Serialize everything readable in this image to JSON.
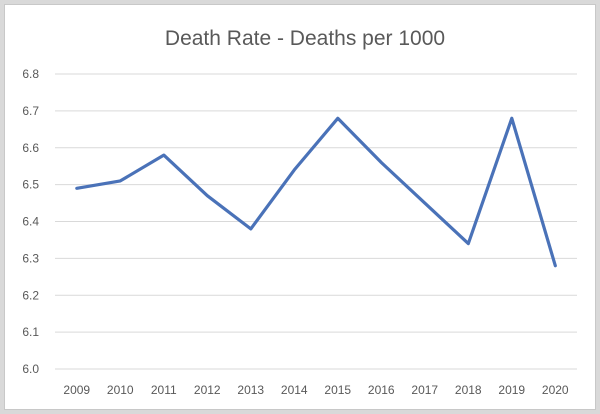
{
  "chart_data": {
    "type": "line",
    "title": "Death Rate - Deaths per 1000",
    "xlabel": "",
    "ylabel": "",
    "categories": [
      "2009",
      "2010",
      "2011",
      "2012",
      "2013",
      "2014",
      "2015",
      "2016",
      "2017",
      "2018",
      "2019",
      "2020"
    ],
    "series": [
      {
        "values": [
          6.49,
          6.51,
          6.58,
          6.47,
          6.38,
          6.54,
          6.68,
          6.56,
          6.45,
          6.34,
          6.68,
          6.28
        ],
        "color": "#4a72b8"
      }
    ],
    "ylim": [
      6.0,
      6.8
    ],
    "yticks": [
      "6.0",
      "6.1",
      "6.2",
      "6.3",
      "6.4",
      "6.5",
      "6.6",
      "6.7",
      "6.8"
    ],
    "grid": true,
    "legend": "none"
  }
}
